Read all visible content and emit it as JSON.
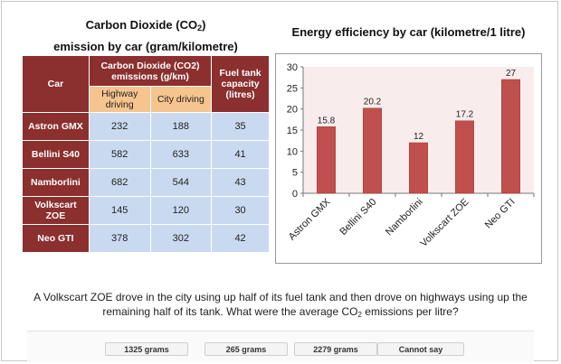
{
  "table": {
    "title_line1_pre": "Carbon Dioxide (CO",
    "title_line1_sub": "2",
    "title_line1_post": ")",
    "title_line2": "emission by car (gram/kilometre)",
    "headers": {
      "car": "Car",
      "co2": "Carbon Dioxide (CO2) emissions (g/km)",
      "highway": "Highway driving",
      "city": "City driving",
      "fuel": "Fuel tank capacity (litres)"
    },
    "rows": [
      {
        "car": "Astron GMX",
        "highway": "232",
        "city": "188",
        "fuel": "35"
      },
      {
        "car": "Bellini S40",
        "highway": "582",
        "city": "633",
        "fuel": "41"
      },
      {
        "car": "Namborlini",
        "highway": "682",
        "city": "544",
        "fuel": "43"
      },
      {
        "car": "Volkscart ZOE",
        "highway": "145",
        "city": "120",
        "fuel": "30"
      },
      {
        "car": "Neo GTI",
        "highway": "378",
        "city": "302",
        "fuel": "42"
      }
    ]
  },
  "chart_data": {
    "type": "bar",
    "title": "Energy efficiency by car (kilometre/1 litre)",
    "categories": [
      "Astron GMX",
      "Bellini S40",
      "Namborlini",
      "Volkscart ZOE",
      "Neo GTI"
    ],
    "values": [
      15.8,
      20.2,
      12,
      17.2,
      27
    ],
    "value_labels": [
      "15.8",
      "20.2",
      "12",
      "17.2",
      "27"
    ],
    "ylim": [
      0,
      30
    ],
    "yticks": [
      0,
      5,
      10,
      15,
      20,
      25,
      30
    ],
    "ytick_labels": [
      "0",
      "5",
      "10",
      "15",
      "20",
      "25",
      "30"
    ],
    "grid": false,
    "bar_color": "#c0504d",
    "plot_background": "#f9ecec"
  },
  "question": {
    "pre": "A Volkscart ZOE drove in the city using up half of its fuel tank and then drove on highways using up the remaining half of its tank. What were the average CO",
    "sub": "2",
    "post": " emissions per litre?"
  },
  "answers": [
    "1325 grams",
    "265 grams",
    "2279 grams",
    "Cannot say"
  ]
}
